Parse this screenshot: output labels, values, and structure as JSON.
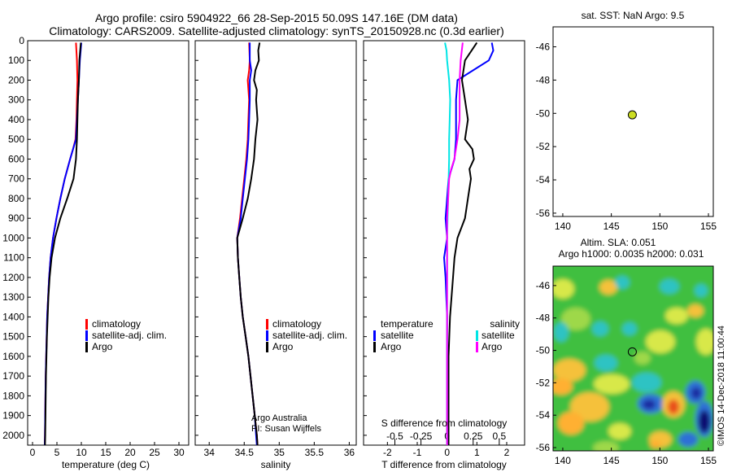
{
  "title": {
    "line1": "Argo profile: csiro 5904922_66 28-Sep-2015 50.09S 147.16E (DM data)",
    "line2": "Climatology: CARS2009. Satellite-adjusted climatology: synTS_20150928.nc (0.3d earlier)"
  },
  "colors": {
    "argo": "#000000",
    "climatology": "#ff0000",
    "satellite": "#0000ff",
    "sat_salinity": "#00e5e5",
    "argo_salinity_diff": "#ff00ff",
    "marker": "#ccdd22"
  },
  "depth_axis": {
    "min": 0,
    "max": 2050,
    "ticks": [
      0,
      100,
      200,
      300,
      400,
      500,
      600,
      700,
      800,
      900,
      1000,
      1100,
      1200,
      1300,
      1400,
      1500,
      1600,
      1700,
      1800,
      1900,
      2000
    ]
  },
  "chart_data": [
    {
      "type": "line",
      "id": "temperature",
      "xlabel": "temperature (deg C)",
      "xlim": [
        -1,
        32
      ],
      "xticks": [
        0,
        5,
        10,
        15,
        20,
        25,
        30
      ],
      "legend": {
        "position": "lower-right",
        "entries": [
          "climatology",
          "satellite-adj. clim.",
          "Argo"
        ]
      },
      "series": [
        {
          "name": "climatology",
          "color": "#ff0000",
          "depth": [
            10,
            100,
            200,
            300,
            400,
            500,
            550,
            600,
            700,
            800,
            900,
            1000,
            1100,
            1200,
            1300,
            1400,
            1500,
            1600,
            1700,
            1800,
            1900,
            2000,
            2050
          ],
          "values": [
            8.9,
            9.1,
            9.2,
            9.1,
            9.0,
            8.8,
            8.3,
            7.7,
            6.6,
            5.7,
            4.9,
            4.2,
            3.7,
            3.4,
            3.2,
            3.0,
            2.9,
            2.8,
            2.7,
            2.65,
            2.6,
            2.55,
            2.5
          ]
        },
        {
          "name": "satellite-adj. clim.",
          "color": "#0000ff",
          "depth": [
            10,
            100,
            200,
            300,
            400,
            500,
            550,
            600,
            700,
            800,
            900,
            1000,
            1100,
            1200,
            1300,
            1400,
            1500,
            1600,
            1700,
            1800,
            1900,
            2000,
            2050
          ],
          "values": [
            10.0,
            9.7,
            9.5,
            9.3,
            9.1,
            8.9,
            8.3,
            7.7,
            6.6,
            5.7,
            4.9,
            4.2,
            3.7,
            3.4,
            3.2,
            3.0,
            2.9,
            2.8,
            2.7,
            2.65,
            2.6,
            2.55,
            2.5
          ]
        },
        {
          "name": "Argo",
          "color": "#000000",
          "depth": [
            10,
            100,
            200,
            300,
            400,
            500,
            600,
            700,
            800,
            900,
            1000,
            1100,
            1200,
            1300,
            1400,
            1500,
            1600,
            1700,
            1800,
            1900,
            2000,
            2050
          ],
          "values": [
            9.9,
            9.6,
            9.5,
            9.3,
            9.2,
            9.1,
            8.9,
            8.4,
            7.1,
            5.7,
            4.6,
            3.9,
            3.5,
            3.25,
            3.1,
            2.95,
            2.85,
            2.75,
            2.7,
            2.65,
            2.6,
            2.55
          ]
        }
      ]
    },
    {
      "type": "line",
      "id": "salinity",
      "xlabel": "salinity",
      "xlim": [
        33.8,
        36.1
      ],
      "xticks": [
        34,
        34.5,
        35,
        35.5,
        36
      ],
      "xtick_labels": [
        "34",
        "34.5",
        "35",
        "35.5",
        "36"
      ],
      "legend": {
        "position": "lower-right",
        "entries": [
          "climatology",
          "satellite-adj. clim.",
          "Argo"
        ]
      },
      "annotation": [
        "Argo Australia",
        "PI: Susan Wijffels"
      ],
      "series": [
        {
          "name": "climatology",
          "color": "#ff0000",
          "depth": [
            10,
            100,
            150,
            200,
            300,
            400,
            500,
            600,
            700,
            800,
            900,
            1000,
            1100,
            1200,
            1300,
            1400,
            1500,
            1600,
            1700,
            1800,
            1900,
            2000,
            2050
          ],
          "values": [
            34.57,
            34.58,
            34.57,
            34.55,
            34.57,
            34.56,
            34.55,
            34.53,
            34.5,
            34.47,
            34.44,
            34.4,
            34.41,
            34.43,
            34.45,
            34.48,
            34.52,
            34.56,
            34.59,
            34.62,
            34.65,
            34.68,
            34.69
          ]
        },
        {
          "name": "satellite-adj. clim.",
          "color": "#0000ff",
          "depth": [
            10,
            100,
            150,
            200,
            300,
            400,
            500,
            600,
            700,
            800,
            900,
            1000,
            1100,
            1200,
            1300,
            1400,
            1500,
            1600,
            1700,
            1800,
            1900,
            2000,
            2050
          ],
          "values": [
            34.58,
            34.58,
            34.6,
            34.58,
            34.58,
            34.57,
            34.56,
            34.54,
            34.51,
            34.48,
            34.45,
            34.4,
            34.41,
            34.43,
            34.45,
            34.48,
            34.52,
            34.56,
            34.59,
            34.62,
            34.65,
            34.67,
            34.68
          ]
        },
        {
          "name": "Argo",
          "color": "#000000",
          "depth": [
            10,
            50,
            100,
            150,
            200,
            250,
            300,
            400,
            500,
            600,
            700,
            800,
            900,
            950,
            1000,
            1100,
            1200,
            1300,
            1400,
            1500,
            1600,
            1700,
            1800,
            1900,
            2000,
            2050
          ],
          "values": [
            34.72,
            34.7,
            34.71,
            34.66,
            34.64,
            34.68,
            34.67,
            34.69,
            34.66,
            34.64,
            34.6,
            34.55,
            34.48,
            34.44,
            34.4,
            34.41,
            34.43,
            34.45,
            34.48,
            34.52,
            34.56,
            34.59,
            34.62,
            34.65,
            34.68,
            34.69
          ]
        }
      ]
    },
    {
      "type": "line",
      "id": "differences",
      "xlabel": "T difference from climatology",
      "xlim": [
        -2.8,
        2.6
      ],
      "xticks": [
        -2,
        -1,
        0,
        1,
        2
      ],
      "top_axis_label": "S difference from climatology",
      "top_xticks": [
        -0.5,
        -0.25,
        0,
        0.25,
        0.5
      ],
      "top_xtick_labels": [
        "-0.5",
        "-0.25",
        "0",
        "0.25",
        "0.5"
      ],
      "legend": {
        "position": "lower-center",
        "temperature_heading": "temperature",
        "salinity_heading": "salinity",
        "entries": [
          "satellite",
          "Argo",
          "satellite",
          "Argo"
        ]
      },
      "series": [
        {
          "name": "temperature satellite",
          "color": "#0000ff",
          "depth": [
            10,
            50,
            100,
            200,
            300,
            400,
            500,
            600,
            700,
            800,
            900,
            1000,
            1100,
            1200,
            1400,
            1600,
            1800,
            2000,
            2050
          ],
          "values": [
            1.5,
            1.55,
            1.4,
            0.35,
            0.3,
            0.3,
            0.3,
            0.25,
            0.05,
            0.0,
            -0.05,
            0.0,
            -0.1,
            -0.05,
            0.0,
            0.0,
            0.0,
            0.0,
            0.0
          ]
        },
        {
          "name": "temperature Argo",
          "color": "#000000",
          "depth": [
            10,
            100,
            200,
            300,
            400,
            500,
            550,
            600,
            650,
            700,
            800,
            900,
            1000,
            1100,
            1200,
            1400,
            1600,
            1800,
            2000,
            2050
          ],
          "values": [
            1.0,
            0.6,
            0.5,
            0.6,
            0.7,
            0.6,
            0.85,
            0.9,
            0.75,
            0.8,
            0.7,
            0.6,
            0.35,
            0.25,
            0.2,
            0.1,
            0.05,
            0.05,
            0.05,
            0.05
          ]
        },
        {
          "name": "salinity satellite",
          "color": "#00e5e5",
          "depth": [
            10,
            50,
            100,
            200,
            300,
            400,
            500,
            600,
            700,
            800,
            900,
            1000,
            1200,
            1400,
            1600,
            1800,
            2000,
            2050
          ],
          "values": [
            -0.02,
            -0.005,
            0.0,
            0.02,
            0.03,
            0.025,
            0.02,
            0.02,
            0.015,
            0.01,
            0.005,
            0.0,
            0.0,
            0.0,
            0.0,
            0.0,
            0.0,
            0.0
          ]
        },
        {
          "name": "salinity Argo",
          "color": "#ff00ff",
          "depth": [
            10,
            100,
            200,
            300,
            400,
            500,
            600,
            650,
            700,
            800,
            900,
            1000,
            1200,
            1400,
            1600,
            1800,
            2000,
            2050
          ],
          "values": [
            0.15,
            0.13,
            0.12,
            0.12,
            0.12,
            0.1,
            0.07,
            0.04,
            0.02,
            0.01,
            0.0,
            0.0,
            0.0,
            0.0,
            0.0,
            0.0,
            0.0,
            0.0
          ]
        }
      ]
    },
    {
      "type": "scatter",
      "id": "sst_map",
      "title": "sat. SST: NaN Argo: 9.5",
      "xlim": [
        139,
        155.5
      ],
      "ylim": [
        -56.2,
        -44.8
      ],
      "xticks": [
        140,
        145,
        150,
        155
      ],
      "yticks": [
        -46,
        -48,
        -50,
        -52,
        -54,
        -56
      ],
      "points": [
        {
          "lon": 147.16,
          "lat": -50.09,
          "color": "#ccdd22"
        }
      ]
    },
    {
      "type": "heatmap",
      "id": "sla_map",
      "title": "Altim. SLA: 0.051",
      "subtitle": "Argo h1000: 0.0035 h2000: 0.031",
      "xlim": [
        139,
        155.5
      ],
      "ylim": [
        -56.2,
        -44.8
      ],
      "xticks": [
        140,
        145,
        150,
        155
      ],
      "yticks": [
        -46,
        -48,
        -50,
        -52,
        -54,
        -56
      ],
      "points": [
        {
          "lon": 147.16,
          "lat": -50.09
        }
      ]
    }
  ],
  "credit": "©IMOS 14-Dec-2018 11:00:44"
}
